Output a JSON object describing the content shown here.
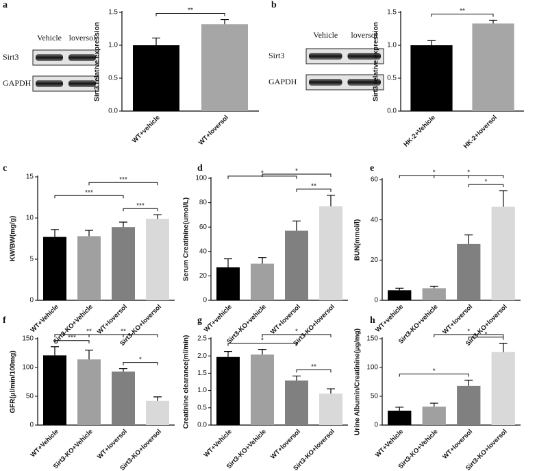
{
  "chart_data": [
    {
      "type": "bar",
      "panel": "a",
      "ylabel": "Sirt3 relative expression",
      "blot": {
        "lanes": [
          "Vehicle",
          "loversol"
        ],
        "rows": [
          "Sirt3",
          "GAPDH"
        ]
      },
      "categories": [
        "WT+vehicle",
        "WT+loversol"
      ],
      "values": [
        1.0,
        1.32
      ],
      "errors": [
        0.11,
        0.07
      ],
      "colors": [
        "#000000",
        "#a6a6a6"
      ],
      "ylim": [
        0,
        1.5
      ],
      "yticks": [
        {
          "value": 0,
          "label": "0.0"
        },
        0.5,
        {
          "value": 1,
          "label": "1.0"
        },
        1.5
      ],
      "significance": [
        {
          "between": [
            "WT+vehicle",
            "WT+loversol"
          ],
          "label": "**"
        }
      ]
    },
    {
      "type": "bar",
      "panel": "b",
      "ylabel": "Sirt3 relative expression",
      "blot": {
        "lanes": [
          "Vehicle",
          "loversol"
        ],
        "rows": [
          "Sirt3",
          "GAPDH"
        ]
      },
      "categories": [
        "HK-2+Vehicle",
        "HK-2+loversol"
      ],
      "values": [
        1.0,
        1.33
      ],
      "errors": [
        0.07,
        0.05
      ],
      "colors": [
        "#000000",
        "#a6a6a6"
      ],
      "ylim": [
        0,
        1.5
      ],
      "yticks": [
        {
          "value": 0,
          "label": "0.0"
        },
        0.5,
        {
          "value": 1,
          "label": "1.0"
        },
        1.5
      ],
      "significance": [
        {
          "between": [
            "HK-2+Vehicle",
            "HK-2+loversol"
          ],
          "label": "**"
        }
      ]
    },
    {
      "type": "bar",
      "panel": "c",
      "ylabel": "KW/BW(mg/g)",
      "categories": [
        "WT+Vehicle",
        "Sirt3-KO+Vehicle",
        "WT+loversol",
        "Sirt3-KO+loversol"
      ],
      "values": [
        7.7,
        7.8,
        8.9,
        9.9
      ],
      "errors": [
        0.9,
        0.7,
        0.6,
        0.5
      ],
      "colors": [
        "#000000",
        "#a0a0a0",
        "#808080",
        "#d9d9d9"
      ],
      "ylim": [
        0,
        15
      ],
      "yticks": [
        0,
        5,
        10,
        15
      ],
      "significance": [
        {
          "between": [
            "WT+loversol",
            "Sirt3-KO+loversol"
          ],
          "label": "***"
        },
        {
          "between": [
            "WT+Vehicle",
            "WT+loversol"
          ],
          "label": "***"
        },
        {
          "between": [
            "Sirt3-KO+Vehicle",
            "Sirt3-KO+loversol"
          ],
          "label": "***"
        }
      ]
    },
    {
      "type": "bar",
      "panel": "d",
      "ylabel": "Serum Creatinine(umol/L)",
      "categories": [
        "WT+vehicle",
        "Sirt3-KO+vehicle",
        "WT+loversol",
        "Sirt3-KO+loversol"
      ],
      "values": [
        27,
        30,
        57,
        77
      ],
      "errors": [
        7,
        5,
        8,
        9
      ],
      "colors": [
        "#000000",
        "#a0a0a0",
        "#808080",
        "#d9d9d9"
      ],
      "ylim": [
        0,
        100
      ],
      "yticks": [
        0,
        20,
        40,
        60,
        80,
        100
      ],
      "significance": [
        {
          "between": [
            "WT+loversol",
            "Sirt3-KO+loversol"
          ],
          "label": "**"
        },
        {
          "between": [
            "WT+vehicle",
            "WT+loversol"
          ],
          "label": "*"
        },
        {
          "between": [
            "Sirt3-KO+vehicle",
            "Sirt3-KO+loversol"
          ],
          "label": "*"
        }
      ]
    },
    {
      "type": "bar",
      "panel": "e",
      "ylabel": "BUN(mmol/l)",
      "categories": [
        "WT+vehicle",
        "Sirt3-KO+vehicle",
        "WT+loversol",
        "Sirt3-KO+loversol"
      ],
      "values": [
        5,
        6,
        28,
        46.5
      ],
      "errors": [
        1,
        1,
        4.5,
        8
      ],
      "colors": [
        "#000000",
        "#a0a0a0",
        "#808080",
        "#d9d9d9"
      ],
      "ylim": [
        0,
        60
      ],
      "yticks": [
        0,
        20,
        40,
        60
      ],
      "significance": [
        {
          "between": [
            "WT+loversol",
            "Sirt3-KO+loversol"
          ],
          "label": "*"
        },
        {
          "between": [
            "Sirt3-KO+vehicle",
            "Sirt3-KO+loversol"
          ],
          "label": "*"
        },
        {
          "between": [
            "WT+vehicle",
            "WT+loversol"
          ],
          "label": "*"
        }
      ]
    },
    {
      "type": "bar",
      "panel": "f",
      "ylabel": "GFR(µl/min/100mg)",
      "categories": [
        "WT+Vehicle",
        "Sirt3-KO+Vehicle",
        "WT+loversol",
        "Sirt3-KO+loversol"
      ],
      "values": [
        121,
        114,
        93,
        42
      ],
      "errors": [
        15,
        16,
        5,
        7
      ],
      "colors": [
        "#000000",
        "#a0a0a0",
        "#808080",
        "#d9d9d9"
      ],
      "ylim": [
        0,
        150
      ],
      "yticks": [
        0,
        50,
        100,
        150
      ],
      "significance": [
        {
          "between": [
            "WT+loversol",
            "Sirt3-KO+loversol"
          ],
          "label": "*"
        },
        {
          "between": [
            "WT+Vehicle",
            "Sirt3-KO+Vehicle"
          ],
          "label": "***"
        },
        {
          "between": [
            "WT+Vehicle",
            "WT+loversol"
          ],
          "label": "**"
        },
        {
          "between": [
            "Sirt3-KO+Vehicle",
            "Sirt3-KO+loversol"
          ],
          "label": "**"
        }
      ]
    },
    {
      "type": "bar",
      "panel": "g",
      "ylabel": "Creatinine clearance(ml/min)",
      "categories": [
        "WT+Vehicle",
        "Sirt3-KO+Vehicle",
        "WT+loversol",
        "Sirt3-KO+loversol"
      ],
      "values": [
        1.97,
        2.04,
        1.29,
        0.91
      ],
      "errors": [
        0.16,
        0.15,
        0.13,
        0.14
      ],
      "colors": [
        "#000000",
        "#a0a0a0",
        "#808080",
        "#d9d9d9"
      ],
      "ylim": [
        0,
        2.5
      ],
      "yticks": [
        {
          "value": 0,
          "label": "0.0"
        },
        0.5,
        {
          "value": 1,
          "label": "1.0"
        },
        1.5,
        {
          "value": 2,
          "label": "2.0"
        },
        2.5
      ],
      "significance": [
        {
          "between": [
            "WT+loversol",
            "Sirt3-KO+loversol"
          ],
          "label": "**"
        },
        {
          "between": [
            "WT+Vehicle",
            "WT+loversol"
          ],
          "label": "*"
        },
        {
          "between": [
            "Sirt3-KO+Vehicle",
            "Sirt3-KO+loversol"
          ],
          "label": "*"
        }
      ]
    },
    {
      "type": "bar",
      "panel": "h",
      "ylabel": "Urine Albumin/Creatinine(µg/mg)",
      "categories": [
        "WT+Vehicle",
        "Sirt3-KO+Vehicle",
        "WT+loversol",
        "Sirt3-KO+loversol"
      ],
      "values": [
        25,
        32,
        68,
        127
      ],
      "errors": [
        6,
        6,
        10,
        15
      ],
      "colors": [
        "#000000",
        "#a0a0a0",
        "#808080",
        "#d9d9d9"
      ],
      "ylim": [
        0,
        150
      ],
      "yticks": [
        0,
        50,
        100,
        150
      ],
      "significance": [
        {
          "between": [
            "WT+Vehicle",
            "WT+loversol"
          ],
          "label": "*"
        },
        {
          "between": [
            "WT+loversol",
            "Sirt3-KO+loversol"
          ],
          "label": "*"
        },
        {
          "between": [
            "Sirt3-KO+Vehicle",
            "Sirt3-KO+loversol"
          ],
          "label": "*"
        }
      ]
    }
  ]
}
